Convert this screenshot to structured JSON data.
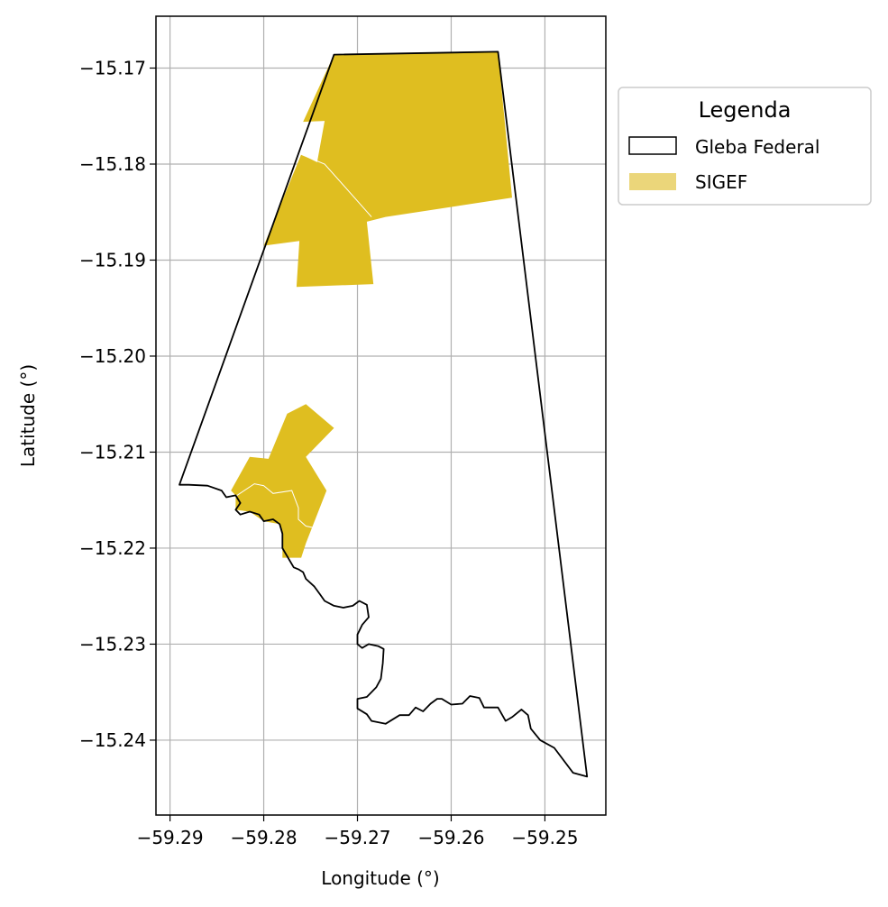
{
  "chart_data": {
    "type": "map",
    "xlabel": "Longitude (°)",
    "ylabel": "Latitude (°)",
    "xlim": [
      -59.2915,
      -59.2435
    ],
    "ylim": [
      -15.2478,
      -15.1646
    ],
    "grid": true,
    "x_ticks": [
      {
        "value": -59.29,
        "label": "−59.29"
      },
      {
        "value": -59.28,
        "label": "−59.28"
      },
      {
        "value": -59.27,
        "label": "−59.27"
      },
      {
        "value": -59.26,
        "label": "−59.26"
      },
      {
        "value": -59.25,
        "label": "−59.25"
      }
    ],
    "y_ticks": [
      {
        "value": -15.17,
        "label": "−15.17"
      },
      {
        "value": -15.18,
        "label": "−15.18"
      },
      {
        "value": -15.19,
        "label": "−15.19"
      },
      {
        "value": -15.2,
        "label": "−15.20"
      },
      {
        "value": -15.21,
        "label": "−15.21"
      },
      {
        "value": -15.22,
        "label": "−15.22"
      },
      {
        "value": -15.23,
        "label": "−15.23"
      },
      {
        "value": -15.24,
        "label": "−15.24"
      }
    ],
    "legend": {
      "title": "Legenda",
      "placement": "outside-top-right",
      "entries": [
        {
          "label": "Gleba Federal",
          "style": "outline",
          "edge_color": "#000000",
          "fill_color": "#ffffff"
        },
        {
          "label": "SIGEF",
          "style": "fill",
          "fill_color": "#ebd67a"
        }
      ]
    },
    "gleba_federal": {
      "edge_color": "#000000",
      "boundary": [
        [
          -59.2725,
          -15.1686
        ],
        [
          -59.255,
          -15.1683
        ],
        [
          -59.2455,
          -15.2438
        ],
        [
          -59.247,
          -15.2434
        ],
        [
          -59.249,
          -15.2408
        ],
        [
          -59.2505,
          -15.24
        ],
        [
          -59.2515,
          -15.2388
        ],
        [
          -59.2518,
          -15.2374
        ],
        [
          -59.2525,
          -15.2368
        ],
        [
          -59.2535,
          -15.2376
        ],
        [
          -59.2542,
          -15.238
        ],
        [
          -59.255,
          -15.2366
        ],
        [
          -59.2565,
          -15.2366
        ],
        [
          -59.257,
          -15.2356
        ],
        [
          -59.258,
          -15.2354
        ],
        [
          -59.2588,
          -15.2362
        ],
        [
          -59.26,
          -15.2363
        ],
        [
          -59.261,
          -15.2357
        ],
        [
          -59.2615,
          -15.2357
        ],
        [
          -59.2622,
          -15.2362
        ],
        [
          -59.263,
          -15.237
        ],
        [
          -59.2638,
          -15.2366
        ],
        [
          -59.2645,
          -15.2374
        ],
        [
          -59.2655,
          -15.2374
        ],
        [
          -59.267,
          -15.2383
        ],
        [
          -59.2685,
          -15.238
        ],
        [
          -59.269,
          -15.2373
        ],
        [
          -59.27,
          -15.2367
        ],
        [
          -59.27,
          -15.2357
        ],
        [
          -59.269,
          -15.2355
        ],
        [
          -59.268,
          -15.2345
        ],
        [
          -59.2675,
          -15.2336
        ],
        [
          -59.2673,
          -15.232
        ],
        [
          -59.2672,
          -15.2305
        ],
        [
          -59.2678,
          -15.2302
        ],
        [
          -59.2688,
          -15.23
        ],
        [
          -59.2695,
          -15.2304
        ],
        [
          -59.27,
          -15.23
        ],
        [
          -59.27,
          -15.229
        ],
        [
          -59.2695,
          -15.228
        ],
        [
          -59.2688,
          -15.2272
        ],
        [
          -59.269,
          -15.2259
        ],
        [
          -59.2698,
          -15.2255
        ],
        [
          -59.2705,
          -15.226
        ],
        [
          -59.2715,
          -15.2262
        ],
        [
          -59.2725,
          -15.226
        ],
        [
          -59.2735,
          -15.2255
        ],
        [
          -59.274,
          -15.2248
        ],
        [
          -59.2746,
          -15.224
        ],
        [
          -59.2755,
          -15.2232
        ],
        [
          -59.2758,
          -15.2225
        ],
        [
          -59.2763,
          -15.2222
        ],
        [
          -59.2768,
          -15.222
        ],
        [
          -59.278,
          -15.22
        ],
        [
          -59.278,
          -15.2185
        ],
        [
          -59.2783,
          -15.2175
        ],
        [
          -59.279,
          -15.217
        ],
        [
          -59.28,
          -15.2172
        ],
        [
          -59.2805,
          -15.2165
        ],
        [
          -59.2815,
          -15.2162
        ],
        [
          -59.2825,
          -15.2165
        ],
        [
          -59.283,
          -15.216
        ],
        [
          -59.2825,
          -15.2153
        ],
        [
          -59.283,
          -15.2145
        ],
        [
          -59.284,
          -15.2147
        ],
        [
          -59.2845,
          -15.214
        ],
        [
          -59.286,
          -15.2135
        ],
        [
          -59.288,
          -15.2134
        ],
        [
          -59.289,
          -15.2134
        ]
      ]
    },
    "sigef": {
      "fill_color": "#dfbe20",
      "parcels": [
        [
          [
            -59.2725,
            -15.1686
          ],
          [
            -59.255,
            -15.1683
          ],
          [
            -59.2535,
            -15.1835
          ],
          [
            -59.267,
            -15.1855
          ],
          [
            -59.269,
            -15.186
          ],
          [
            -59.2683,
            -15.1925
          ],
          [
            -59.2765,
            -15.1928
          ],
          [
            -59.2762,
            -15.188
          ],
          [
            -59.28,
            -15.1885
          ],
          [
            -59.276,
            -15.179
          ],
          [
            -59.2743,
            -15.1798
          ],
          [
            -59.2735,
            -15.1755
          ],
          [
            -59.2758,
            -15.1756
          ]
        ],
        [
          [
            -59.2775,
            -15.206
          ],
          [
            -59.2755,
            -15.205
          ],
          [
            -59.2725,
            -15.2075
          ],
          [
            -59.2755,
            -15.2105
          ],
          [
            -59.2733,
            -15.214
          ],
          [
            -59.2755,
            -15.2195
          ],
          [
            -59.276,
            -15.221
          ],
          [
            -59.278,
            -15.221
          ],
          [
            -59.278,
            -15.2185
          ],
          [
            -59.2783,
            -15.2175
          ],
          [
            -59.28,
            -15.2172
          ],
          [
            -59.2815,
            -15.2162
          ],
          [
            -59.283,
            -15.216
          ],
          [
            -59.283,
            -15.2145
          ],
          [
            -59.2835,
            -15.214
          ],
          [
            -59.2815,
            -15.2105
          ],
          [
            -59.2795,
            -15.2107
          ]
        ]
      ],
      "internal_lines": [
        [
          [
            -59.276,
            -15.179
          ],
          [
            -59.2735,
            -15.18
          ],
          [
            -59.2685,
            -15.1855
          ]
        ],
        [
          [
            -59.2833,
            -15.2148
          ],
          [
            -59.281,
            -15.2133
          ],
          [
            -59.28,
            -15.2135
          ],
          [
            -59.279,
            -15.2143
          ],
          [
            -59.277,
            -15.214
          ],
          [
            -59.2763,
            -15.2158
          ],
          [
            -59.2763,
            -15.217
          ],
          [
            -59.2755,
            -15.2177
          ],
          [
            -59.274,
            -15.218
          ]
        ]
      ]
    }
  }
}
